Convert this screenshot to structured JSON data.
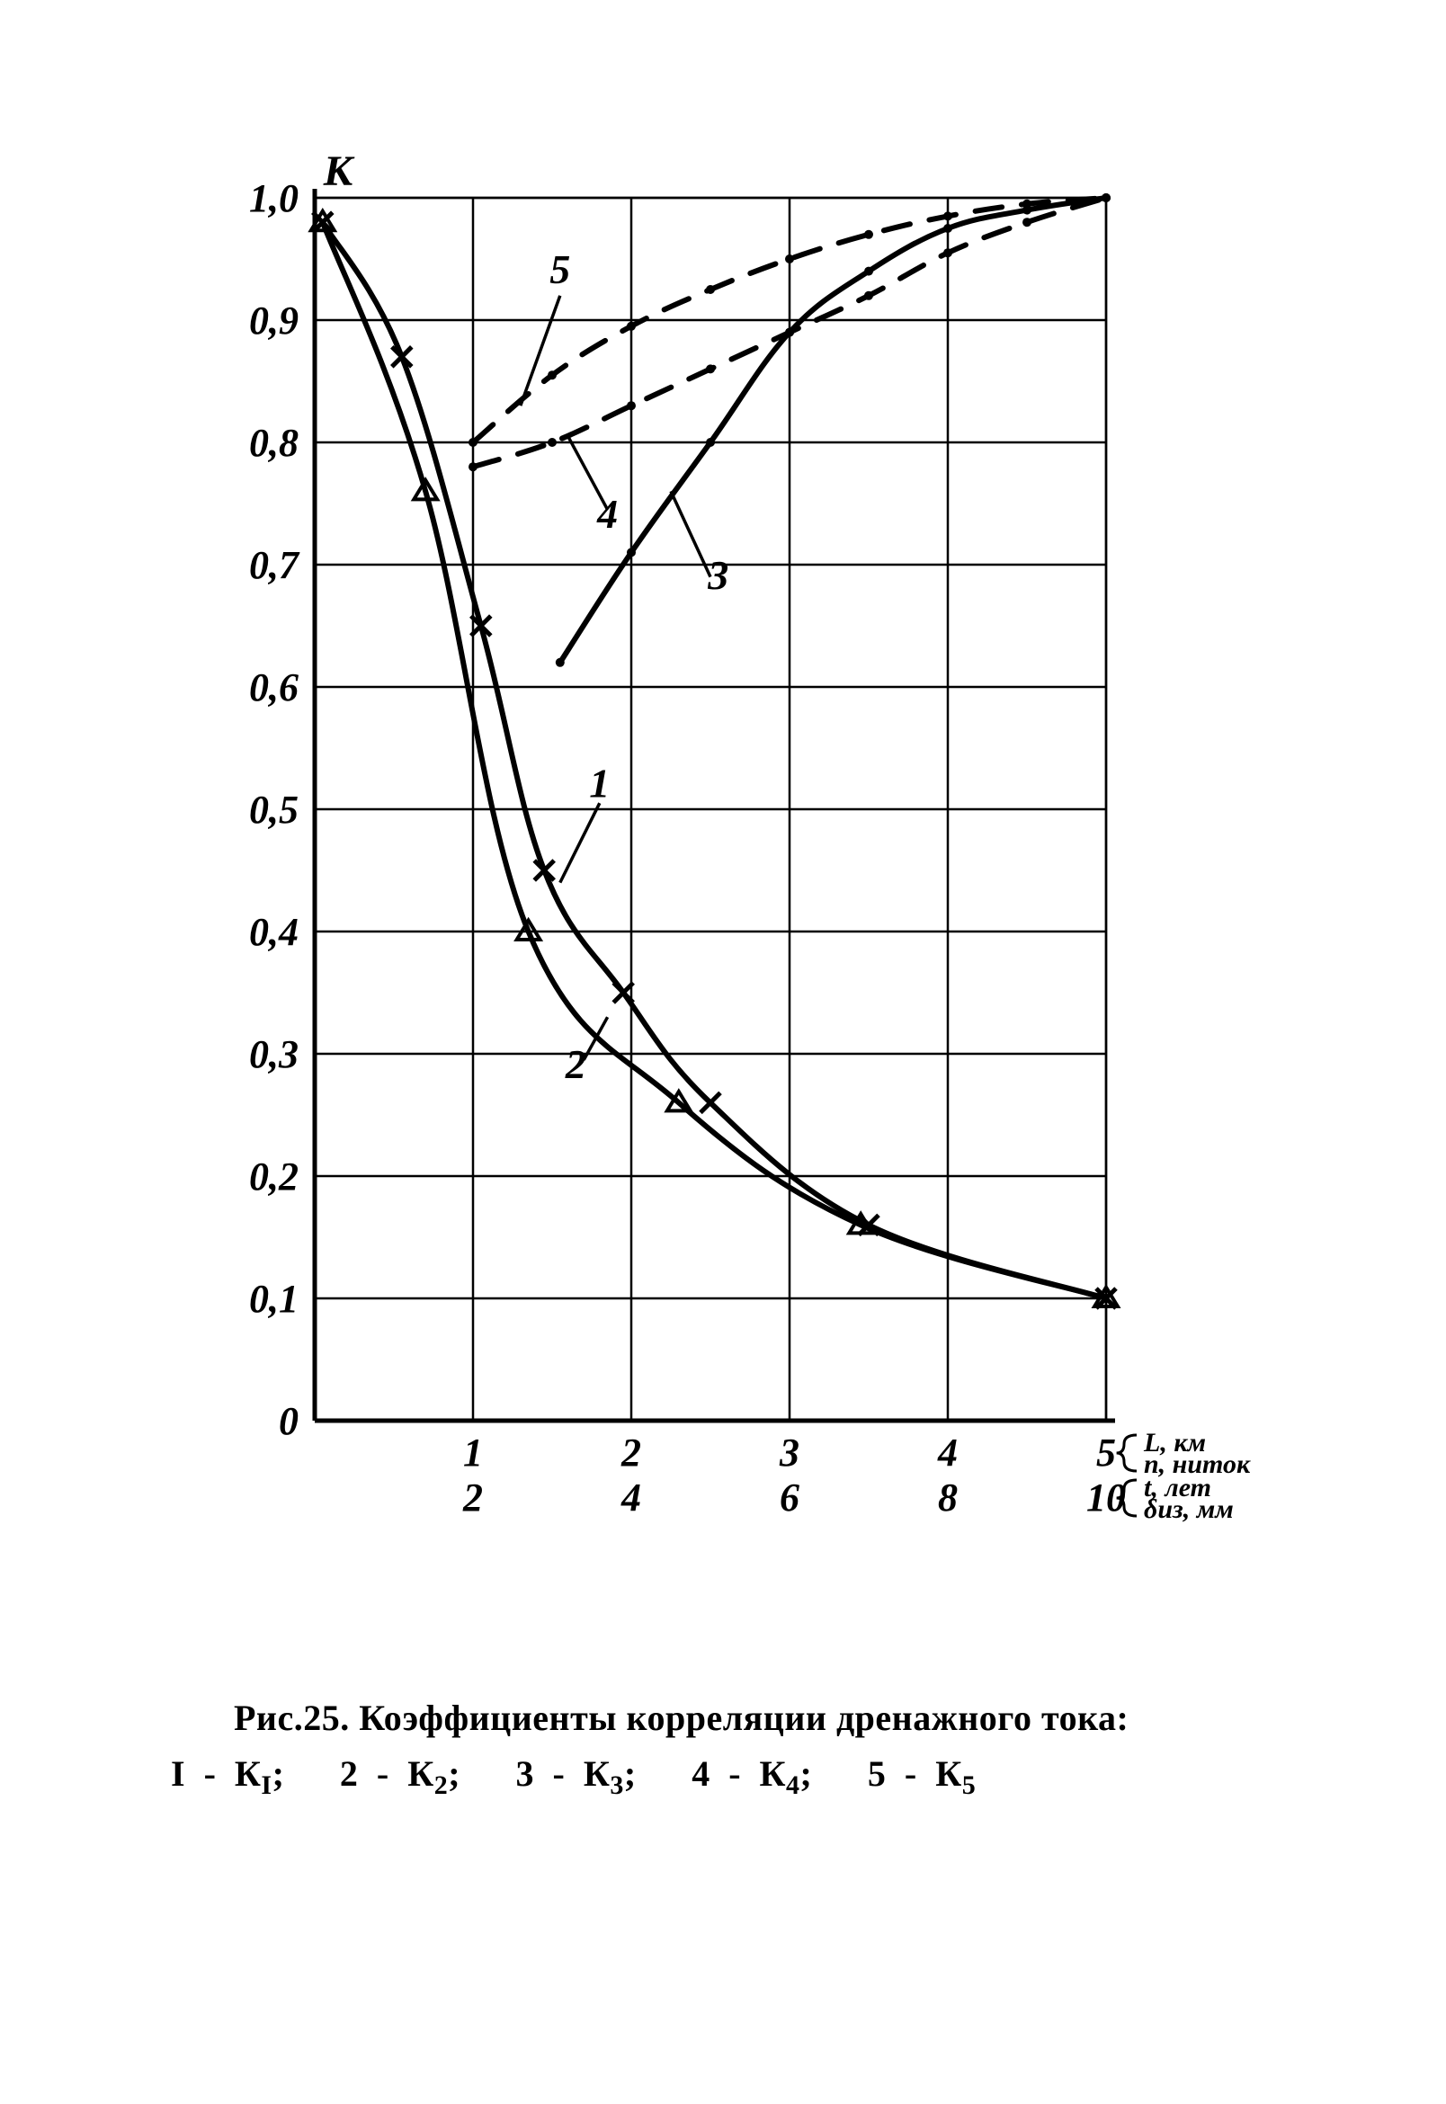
{
  "chart": {
    "type": "line",
    "y_axis_label": "К",
    "xlim": [
      0,
      5
    ],
    "ylim": [
      0,
      1.0
    ],
    "y_ticks": [
      0,
      0.1,
      0.2,
      0.3,
      0.4,
      0.5,
      0.6,
      0.7,
      0.8,
      0.9,
      1.0
    ],
    "y_tick_labels": [
      "0",
      "0,1",
      "0,2",
      "0,3",
      "0,4",
      "0,5",
      "0,6",
      "0,7",
      "0,8",
      "0,9",
      "1,0"
    ],
    "x_row1_ticks": [
      1,
      2,
      3,
      4,
      5
    ],
    "x_row1_labels": [
      "1",
      "2",
      "3",
      "4",
      "5"
    ],
    "x_row2_ticks": [
      1,
      2,
      3,
      4,
      5
    ],
    "x_row2_labels": [
      "2",
      "4",
      "6",
      "8",
      "10"
    ],
    "x_axis_right_labels_row1": [
      "L, км",
      "n, ниток"
    ],
    "x_axis_right_labels_row2": [
      "t, лет",
      "δиз, мм"
    ],
    "grid_color": "#000000",
    "axis_color": "#000000",
    "background_color": "#ffffff",
    "line_width_grid": 2.5,
    "line_width_axis": 5,
    "line_width_series": 6,
    "font_size_ticks": 44,
    "font_size_axis_label": 48,
    "font_size_curve_label": 46,
    "font_weight": "bold",
    "font_family": "Times New Roman, Georgia, serif",
    "color": "#000000",
    "series": {
      "1": {
        "label": "1",
        "label_pos": [
          1.8,
          0.51
        ],
        "marker": "x",
        "marker_size": 22,
        "dash": null,
        "x": [
          0.05,
          0.55,
          1.05,
          1.45,
          1.95,
          2.5,
          3.5,
          5.0
        ],
        "y": [
          0.98,
          0.87,
          0.65,
          0.45,
          0.35,
          0.26,
          0.16,
          0.1
        ]
      },
      "2": {
        "label": "2",
        "label_pos": [
          1.65,
          0.28
        ],
        "marker": "triangle",
        "marker_size": 22,
        "dash": null,
        "x": [
          0.05,
          0.7,
          1.35,
          2.3,
          3.45,
          5.0
        ],
        "y": [
          0.98,
          0.76,
          0.4,
          0.26,
          0.16,
          0.1
        ]
      },
      "3": {
        "label": "3",
        "label_pos": [
          2.55,
          0.68
        ],
        "marker": "dot",
        "marker_size": 10,
        "dash": null,
        "x": [
          1.55,
          2.0,
          2.5,
          3.0,
          3.5,
          4.0,
          4.5,
          5.0
        ],
        "y": [
          0.62,
          0.71,
          0.8,
          0.89,
          0.94,
          0.975,
          0.99,
          1.0
        ]
      },
      "4": {
        "label": "4",
        "label_pos": [
          1.85,
          0.73
        ],
        "marker": "dot",
        "marker_size": 10,
        "dash": [
          30,
          22
        ],
        "x": [
          1.0,
          1.5,
          2.0,
          2.5,
          3.0,
          3.5,
          4.0,
          4.5,
          5.0
        ],
        "y": [
          0.78,
          0.8,
          0.83,
          0.86,
          0.89,
          0.92,
          0.955,
          0.98,
          1.0
        ]
      },
      "5": {
        "label": "5",
        "label_pos": [
          1.55,
          0.93
        ],
        "marker": "dot",
        "marker_size": 10,
        "dash": [
          30,
          22
        ],
        "x": [
          1.0,
          1.5,
          2.0,
          2.5,
          3.0,
          3.5,
          4.0,
          4.5,
          5.0
        ],
        "y": [
          0.8,
          0.855,
          0.895,
          0.925,
          0.95,
          0.97,
          0.985,
          0.995,
          1.0
        ]
      }
    },
    "leader_lines": {
      "1": {
        "from": [
          1.8,
          0.505
        ],
        "to": [
          1.55,
          0.44
        ]
      },
      "2": {
        "from": [
          1.7,
          0.295
        ],
        "to": [
          1.85,
          0.33
        ]
      },
      "3": {
        "from": [
          2.5,
          0.69
        ],
        "to": [
          2.25,
          0.76
        ]
      },
      "4": {
        "from": [
          1.85,
          0.745
        ],
        "to": [
          1.6,
          0.805
        ]
      },
      "5": {
        "from": [
          1.55,
          0.92
        ],
        "to": [
          1.3,
          0.83
        ]
      }
    }
  },
  "caption": {
    "figure_label": "Рис.25.",
    "title": "Коэффициенты корреляции дренажного тока:",
    "legend_prefix_numbers": [
      "I",
      "2",
      "3",
      "4",
      "5"
    ],
    "legend_symbols": [
      "К",
      "К",
      "К",
      "К",
      "К"
    ],
    "legend_subscripts": [
      "I",
      "2",
      "3",
      "4",
      "5"
    ],
    "separator": ";"
  }
}
